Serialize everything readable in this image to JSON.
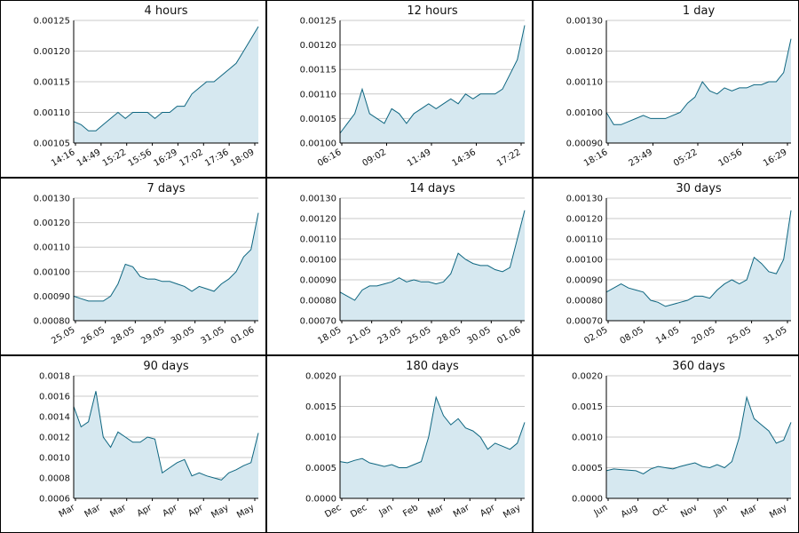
{
  "chart_data": [
    {
      "type": "area",
      "title": "4 hours",
      "ylim": [
        0.00105,
        0.00125
      ],
      "yticks": [
        "0.00105",
        "0.00110",
        "0.00115",
        "0.00120",
        "0.00125"
      ],
      "xticks": [
        "14:16",
        "14:49",
        "15:22",
        "15:56",
        "16:29",
        "17:02",
        "17:36",
        "18:09"
      ],
      "x": [
        0,
        4,
        8,
        12,
        16,
        20,
        24,
        28,
        32,
        36,
        40,
        44,
        48,
        52,
        56,
        60,
        64,
        68,
        72,
        76,
        80,
        84,
        88,
        92,
        96,
        100
      ],
      "y": [
        0.001085,
        0.00108,
        0.00107,
        0.00107,
        0.00108,
        0.00109,
        0.0011,
        0.00109,
        0.0011,
        0.0011,
        0.0011,
        0.00109,
        0.0011,
        0.0011,
        0.00111,
        0.00111,
        0.00113,
        0.00114,
        0.00115,
        0.00115,
        0.00116,
        0.00117,
        0.00118,
        0.0012,
        0.00122,
        0.00124
      ],
      "grid": true
    },
    {
      "type": "area",
      "title": "12 hours",
      "ylim": [
        0.001,
        0.00125
      ],
      "yticks": [
        "0.00100",
        "0.00105",
        "0.00110",
        "0.00115",
        "0.00120",
        "0.00125"
      ],
      "xticks": [
        "06:16",
        "09:02",
        "11:49",
        "14:36",
        "17:22"
      ],
      "x": [
        0,
        4,
        8,
        12,
        16,
        20,
        24,
        28,
        32,
        36,
        40,
        44,
        48,
        52,
        56,
        60,
        64,
        68,
        72,
        76,
        80,
        84,
        88,
        92,
        96,
        100
      ],
      "y": [
        0.00102,
        0.00104,
        0.00106,
        0.00111,
        0.00106,
        0.00105,
        0.00104,
        0.00107,
        0.00106,
        0.00104,
        0.00106,
        0.00107,
        0.00108,
        0.00107,
        0.00108,
        0.00109,
        0.00108,
        0.0011,
        0.00109,
        0.0011,
        0.0011,
        0.0011,
        0.00111,
        0.00114,
        0.00117,
        0.00124
      ],
      "grid": true
    },
    {
      "type": "area",
      "title": "1 day",
      "ylim": [
        0.0009,
        0.0013
      ],
      "yticks": [
        "0.00090",
        "0.00100",
        "0.00110",
        "0.00120",
        "0.00130"
      ],
      "xticks": [
        "18:16",
        "23:49",
        "05:22",
        "10:56",
        "16:29"
      ],
      "x": [
        0,
        4,
        8,
        12,
        16,
        20,
        24,
        28,
        32,
        36,
        40,
        44,
        48,
        52,
        56,
        60,
        64,
        68,
        72,
        76,
        80,
        84,
        88,
        92,
        96,
        100
      ],
      "y": [
        0.001,
        0.00096,
        0.00096,
        0.00097,
        0.00098,
        0.00099,
        0.00098,
        0.00098,
        0.00098,
        0.00099,
        0.001,
        0.00103,
        0.00105,
        0.0011,
        0.00107,
        0.00106,
        0.00108,
        0.00107,
        0.00108,
        0.00108,
        0.00109,
        0.00109,
        0.0011,
        0.0011,
        0.00113,
        0.00124
      ],
      "grid": true
    },
    {
      "type": "area",
      "title": "7 days",
      "ylim": [
        0.0008,
        0.0013
      ],
      "yticks": [
        "0.00080",
        "0.00090",
        "0.00100",
        "0.00110",
        "0.00120",
        "0.00130"
      ],
      "xticks": [
        "25.05",
        "26.05",
        "28.05",
        "29.05",
        "30.05",
        "31.05",
        "01.06"
      ],
      "x": [
        0,
        4,
        8,
        12,
        16,
        20,
        24,
        28,
        32,
        36,
        40,
        44,
        48,
        52,
        56,
        60,
        64,
        68,
        72,
        76,
        80,
        84,
        88,
        92,
        96,
        100
      ],
      "y": [
        0.0009,
        0.00089,
        0.00088,
        0.00088,
        0.00088,
        0.0009,
        0.00095,
        0.00103,
        0.00102,
        0.00098,
        0.00097,
        0.00097,
        0.00096,
        0.00096,
        0.00095,
        0.00094,
        0.00092,
        0.00094,
        0.00093,
        0.00092,
        0.00095,
        0.00097,
        0.001,
        0.00106,
        0.00109,
        0.00124
      ],
      "grid": true
    },
    {
      "type": "area",
      "title": "14 days",
      "ylim": [
        0.0007,
        0.0013
      ],
      "yticks": [
        "0.00070",
        "0.00080",
        "0.00090",
        "0.00100",
        "0.00110",
        "0.00120",
        "0.00130"
      ],
      "xticks": [
        "18.05",
        "21.05",
        "23.05",
        "25.05",
        "28.05",
        "30.05",
        "01.06"
      ],
      "x": [
        0,
        4,
        8,
        12,
        16,
        20,
        24,
        28,
        32,
        36,
        40,
        44,
        48,
        52,
        56,
        60,
        64,
        68,
        72,
        76,
        80,
        84,
        88,
        92,
        96,
        100
      ],
      "y": [
        0.00084,
        0.00082,
        0.0008,
        0.00085,
        0.00087,
        0.00087,
        0.00088,
        0.00089,
        0.00091,
        0.00089,
        0.0009,
        0.00089,
        0.00089,
        0.00088,
        0.00089,
        0.00093,
        0.00103,
        0.001,
        0.00098,
        0.00097,
        0.00097,
        0.00095,
        0.00094,
        0.00096,
        0.0011,
        0.00124
      ],
      "grid": true
    },
    {
      "type": "area",
      "title": "30 days",
      "ylim": [
        0.0007,
        0.0013
      ],
      "yticks": [
        "0.00070",
        "0.00080",
        "0.00090",
        "0.00100",
        "0.00110",
        "0.00120",
        "0.00130"
      ],
      "xticks": [
        "02.05",
        "08.05",
        "14.05",
        "20.05",
        "25.05",
        "31.05"
      ],
      "x": [
        0,
        4,
        8,
        12,
        16,
        20,
        24,
        28,
        32,
        36,
        40,
        44,
        48,
        52,
        56,
        60,
        64,
        68,
        72,
        76,
        80,
        84,
        88,
        92,
        96,
        100
      ],
      "y": [
        0.00084,
        0.00086,
        0.00088,
        0.00086,
        0.00085,
        0.00084,
        0.0008,
        0.00079,
        0.00077,
        0.00078,
        0.00079,
        0.0008,
        0.00082,
        0.00082,
        0.00081,
        0.00085,
        0.00088,
        0.0009,
        0.00088,
        0.0009,
        0.00101,
        0.00098,
        0.00094,
        0.00093,
        0.001,
        0.00124
      ],
      "grid": true
    },
    {
      "type": "area",
      "title": "90 days",
      "ylim": [
        0.0006,
        0.0018
      ],
      "yticks": [
        "0.0006",
        "0.0008",
        "0.0010",
        "0.0012",
        "0.0014",
        "0.0016",
        "0.0018"
      ],
      "xticks": [
        "Mar",
        "Mar",
        "Mar",
        "Apr",
        "Apr",
        "Apr",
        "May",
        "May"
      ],
      "x": [
        0,
        4,
        8,
        12,
        16,
        20,
        24,
        28,
        32,
        36,
        40,
        44,
        48,
        52,
        56,
        60,
        64,
        68,
        72,
        76,
        80,
        84,
        88,
        92,
        96,
        100
      ],
      "y": [
        0.0015,
        0.0013,
        0.00135,
        0.00165,
        0.0012,
        0.0011,
        0.00125,
        0.0012,
        0.00115,
        0.00115,
        0.0012,
        0.00118,
        0.00085,
        0.0009,
        0.00095,
        0.00098,
        0.00082,
        0.00085,
        0.00082,
        0.0008,
        0.00078,
        0.00085,
        0.00088,
        0.00092,
        0.00095,
        0.00124
      ],
      "grid": true
    },
    {
      "type": "area",
      "title": "180 days",
      "ylim": [
        0.0,
        0.002
      ],
      "yticks": [
        "0.0000",
        "0.0005",
        "0.0010",
        "0.0015",
        "0.0020"
      ],
      "xticks": [
        "Dec",
        "Dec",
        "Jan",
        "Feb",
        "Mar",
        "Mar",
        "Apr",
        "May"
      ],
      "x": [
        0,
        4,
        8,
        12,
        16,
        20,
        24,
        28,
        32,
        36,
        40,
        44,
        48,
        52,
        56,
        60,
        64,
        68,
        72,
        76,
        80,
        84,
        88,
        92,
        96,
        100
      ],
      "y": [
        0.0006,
        0.00058,
        0.00062,
        0.00065,
        0.00058,
        0.00055,
        0.00052,
        0.00055,
        0.0005,
        0.0005,
        0.00055,
        0.0006,
        0.001,
        0.00165,
        0.00135,
        0.0012,
        0.0013,
        0.00115,
        0.0011,
        0.001,
        0.0008,
        0.0009,
        0.00085,
        0.0008,
        0.0009,
        0.00124
      ],
      "grid": true
    },
    {
      "type": "area",
      "title": "360 days",
      "ylim": [
        0.0,
        0.002
      ],
      "yticks": [
        "0.0000",
        "0.0005",
        "0.0010",
        "0.0015",
        "0.0020"
      ],
      "xticks": [
        "Jun",
        "Aug",
        "Oct",
        "Nov",
        "Jan",
        "Mar",
        "May"
      ],
      "x": [
        0,
        4,
        8,
        12,
        16,
        20,
        24,
        28,
        32,
        36,
        40,
        44,
        48,
        52,
        56,
        60,
        64,
        68,
        72,
        76,
        80,
        84,
        88,
        92,
        96,
        100
      ],
      "y": [
        0.00045,
        0.00048,
        0.00047,
        0.00046,
        0.00045,
        0.0004,
        0.00048,
        0.00052,
        0.0005,
        0.00048,
        0.00052,
        0.00055,
        0.00058,
        0.00052,
        0.0005,
        0.00055,
        0.0005,
        0.0006,
        0.001,
        0.00165,
        0.0013,
        0.0012,
        0.0011,
        0.0009,
        0.00095,
        0.00124
      ],
      "grid": true
    }
  ],
  "colors": {
    "line": "#0e6680",
    "fill": "#d6e8f0",
    "grid": "#c8c8c8",
    "border": "#000000"
  }
}
